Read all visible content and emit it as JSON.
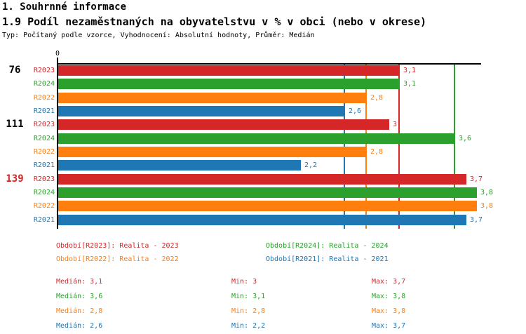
{
  "header": {
    "title": "1. Souhrnné informace",
    "subtitle": "1.9 Podíl nezaměstnaných na obyvatelstvu v % v obci (nebo v okrese)",
    "meta": "Typ: Počítaný podle vzorce, Vyhodnocení: Absolutní hodnoty, Průměr: Medián"
  },
  "colors": {
    "R2023": "#d62728",
    "R2024": "#2ca02c",
    "R2022": "#ff7f0e",
    "R2021": "#1f77b4",
    "axis": "#000000",
    "group_label_default": "#000000",
    "group_label_highlight": "#d62728"
  },
  "chart_data": {
    "type": "bar",
    "orientation": "horizontal",
    "title": "1.9 Podíl nezaměstnaných na obyvatelstvu v % v obci (nebo v okrese)",
    "xlabel": "",
    "ylabel": "",
    "xlim": [
      0,
      3.85
    ],
    "grid": false,
    "axis_zero_label": "0",
    "series": [
      "R2023",
      "R2024",
      "R2022",
      "R2021"
    ],
    "groups": [
      {
        "label": "76",
        "highlighted": false,
        "bars": [
          {
            "series": "R2023",
            "value": 3.1,
            "value_label": "3,1"
          },
          {
            "series": "R2024",
            "value": 3.1,
            "value_label": "3,1"
          },
          {
            "series": "R2022",
            "value": 2.8,
            "value_label": "2,8"
          },
          {
            "series": "R2021",
            "value": 2.6,
            "value_label": "2,6"
          }
        ]
      },
      {
        "label": "111",
        "highlighted": false,
        "bars": [
          {
            "series": "R2023",
            "value": 3.0,
            "value_label": "3"
          },
          {
            "series": "R2024",
            "value": 3.6,
            "value_label": "3,6"
          },
          {
            "series": "R2022",
            "value": 2.8,
            "value_label": "2,8"
          },
          {
            "series": "R2021",
            "value": 2.2,
            "value_label": "2,2"
          }
        ]
      },
      {
        "label": "139",
        "highlighted": true,
        "bars": [
          {
            "series": "R2023",
            "value": 3.7,
            "value_label": "3,7"
          },
          {
            "series": "R2024",
            "value": 3.8,
            "value_label": "3,8"
          },
          {
            "series": "R2022",
            "value": 3.8,
            "value_label": "3,8"
          },
          {
            "series": "R2021",
            "value": 3.7,
            "value_label": "3,7"
          }
        ]
      }
    ],
    "median_lines": [
      {
        "series": "R2023",
        "value": 3.1
      },
      {
        "series": "R2024",
        "value": 3.6
      },
      {
        "series": "R2022",
        "value": 2.8
      },
      {
        "series": "R2021",
        "value": 2.6
      }
    ]
  },
  "legend": {
    "columns": [
      [
        {
          "series": "R2023",
          "label": "Období[R2023]: Realita - 2023"
        },
        {
          "series": "R2022",
          "label": "Období[R2022]: Realita - 2022"
        }
      ],
      [
        {
          "series": "R2024",
          "label": "Období[R2024]: Realita - 2024"
        },
        {
          "series": "R2021",
          "label": "Období[R2021]: Realita - 2021"
        }
      ]
    ]
  },
  "stats": {
    "rows": [
      {
        "series": "R2023",
        "median": 3.1,
        "min": 3,
        "max": 3.7,
        "median_text": "Medián: 3,1",
        "min_text": "Min: 3",
        "max_text": "Max: 3,7"
      },
      {
        "series": "R2024",
        "median": 3.6,
        "min": 3.1,
        "max": 3.8,
        "median_text": "Medián: 3,6",
        "min_text": "Min: 3,1",
        "max_text": "Max: 3,8"
      },
      {
        "series": "R2022",
        "median": 2.8,
        "min": 2.8,
        "max": 3.8,
        "median_text": "Medián: 2,8",
        "min_text": "Min: 2,8",
        "max_text": "Max: 3,8"
      },
      {
        "series": "R2021",
        "median": 2.6,
        "min": 2.2,
        "max": 3.7,
        "median_text": "Medián: 2,6",
        "min_text": "Min: 2,2",
        "max_text": "Max: 3,7"
      }
    ]
  }
}
